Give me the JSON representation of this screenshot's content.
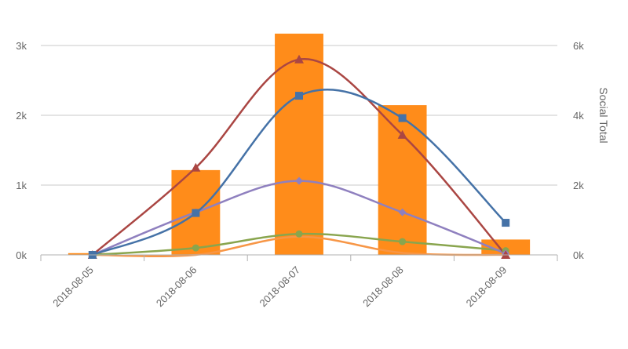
{
  "chart_data": {
    "type": "bar",
    "categories": [
      "2018-08-05",
      "2018-08-06",
      "2018-08-07",
      "2018-08-08",
      "2018-08-09"
    ],
    "left_axis": {
      "ticks": [
        0,
        1000,
        2000,
        3000
      ],
      "tick_labels": [
        "0k",
        "1k",
        "2k",
        "3k"
      ],
      "ylim": [
        0,
        3000
      ]
    },
    "right_axis": {
      "title": "Social Total",
      "ticks": [
        0,
        2000,
        4000,
        6000
      ],
      "tick_labels": [
        "0k",
        "2k",
        "4k",
        "6k"
      ],
      "ylim": [
        0,
        6000
      ]
    },
    "grid": true,
    "legend": "none",
    "series": [
      {
        "kind": "bar",
        "axis": "right",
        "color": "#ff8c1a",
        "values": [
          50,
          2430,
          6340,
          4290,
          440
        ]
      },
      {
        "kind": "line",
        "axis": "left",
        "color": "#4572a7",
        "marker": "square",
        "values": [
          0,
          600,
          2280,
          1960,
          460
        ]
      },
      {
        "kind": "line",
        "axis": "left",
        "color": "#aa4643",
        "marker": "triangle",
        "values": [
          0,
          1250,
          2800,
          1720,
          0
        ]
      },
      {
        "kind": "line",
        "axis": "left",
        "color": "#8f80bf",
        "marker": "diamond",
        "values": [
          0,
          610,
          1060,
          610,
          20
        ]
      },
      {
        "kind": "line",
        "axis": "left",
        "color": "#89a54e",
        "marker": "circle",
        "values": [
          0,
          100,
          300,
          190,
          60
        ]
      },
      {
        "kind": "line",
        "axis": "left",
        "color": "#f79646",
        "marker": "none",
        "values": [
          0,
          0,
          260,
          30,
          0
        ]
      }
    ]
  }
}
